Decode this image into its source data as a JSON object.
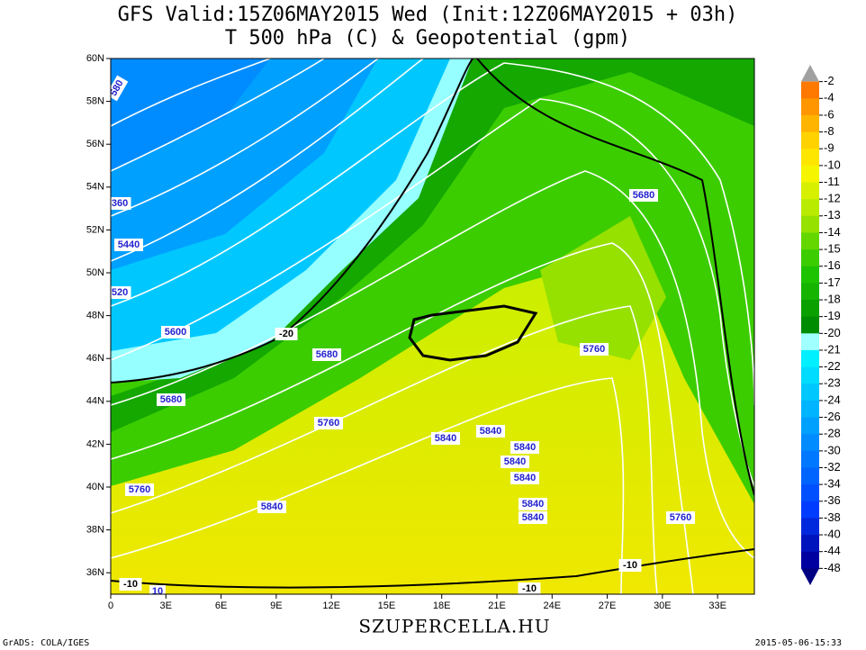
{
  "header": {
    "title": "GFS Valid:15Z06MAY2015 Wed (Init:12Z06MAY2015 + 03h)",
    "subtitle": "T 500 hPa (C) & Geopotential (gpm)"
  },
  "map": {
    "lon_labels": [
      "0",
      "3E",
      "6E",
      "9E",
      "12E",
      "15E",
      "18E",
      "21E",
      "24E",
      "27E",
      "30E",
      "33E"
    ],
    "lat_labels": [
      "60N",
      "58N",
      "56N",
      "54N",
      "52N",
      "50N",
      "48N",
      "46N",
      "44N",
      "42N",
      "40N",
      "38N",
      "36N"
    ],
    "contour_labels": [
      "580",
      "360",
      "5440",
      "520",
      "5600",
      "-20",
      "5680",
      "5680",
      "5760",
      "5840",
      "5840",
      "5840",
      "5840",
      "5840",
      "5840",
      "5840",
      "5840",
      "5760",
      "5680",
      "5760",
      "5760",
      "-10",
      "-10",
      "-10",
      "10"
    ]
  },
  "colorbar": {
    "labels": [
      "-2",
      "-4",
      "-6",
      "-8",
      "-9",
      "-10",
      "-11",
      "-12",
      "-13",
      "-14",
      "-15",
      "-16",
      "-17",
      "-18",
      "-19",
      "-20",
      "-21",
      "-22",
      "-23",
      "-24",
      "-26",
      "-28",
      "-30",
      "-32",
      "-34",
      "-36",
      "-38",
      "-40",
      "-44",
      "-48"
    ],
    "colors": [
      "#a0a0a0",
      "#ff7800",
      "#ff9600",
      "#ffb400",
      "#ffd200",
      "#ffe600",
      "#f5f500",
      "#d7f000",
      "#b9eb00",
      "#96e100",
      "#64d700",
      "#3ccd00",
      "#1ec300",
      "#14b400",
      "#0aa000",
      "#008c00",
      "#a0ffff",
      "#00f0ff",
      "#00dcff",
      "#00c8ff",
      "#00b4ff",
      "#00a0ff",
      "#008cff",
      "#0078ff",
      "#0064ff",
      "#0050ff",
      "#003cff",
      "#0028dc",
      "#0014be",
      "#0000a0",
      "#000082"
    ]
  },
  "footer": {
    "site": "SZUPERCELLA.HU",
    "left": "GrADS: COLA/IGES",
    "right": "2015-05-06-15:33"
  }
}
